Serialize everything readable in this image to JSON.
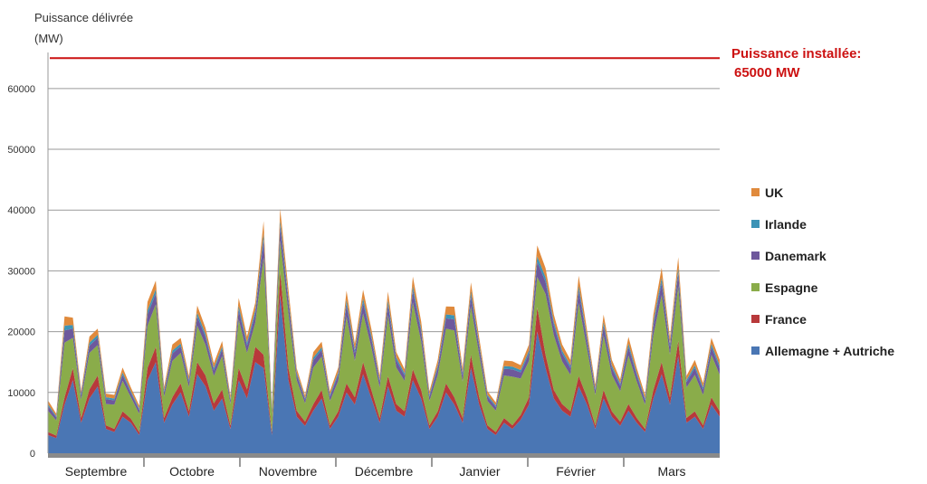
{
  "chart_data": {
    "type": "area",
    "stacked": true,
    "ylabel_line1": "Puissance délivrée",
    "ylabel_line2": "(MW)",
    "ylim": [
      0,
      65000
    ],
    "yticks": [
      0,
      10000,
      20000,
      30000,
      40000,
      50000,
      60000
    ],
    "grid": true,
    "legend_position": "right",
    "months": [
      "Septembre",
      "Octobre",
      "Novembre",
      "Décembre",
      "Janvier",
      "Février",
      "Mars"
    ],
    "reference_line": {
      "value": 65000,
      "label_line1": "Puissance installée:",
      "label_line2": "65000 MW",
      "color": "#cc1111"
    },
    "legend_order": [
      "UK",
      "Irlande",
      "Danemark",
      "Espagne",
      "France",
      "Allemagne + Autriche"
    ],
    "series": [
      {
        "name": "Allemagne + Autriche",
        "color": "#4a76b4",
        "values": [
          3000,
          2500,
          8000,
          12000,
          5000,
          9000,
          11000,
          4000,
          3500,
          6000,
          5000,
          3000,
          12000,
          15000,
          5000,
          8000,
          10000,
          6000,
          13000,
          11000,
          7000,
          9000,
          4000,
          12000,
          9000,
          15000,
          14000,
          3000,
          26000,
          12000,
          6000,
          4500,
          7000,
          9000,
          4000,
          6000,
          10000,
          8000,
          13000,
          9000,
          5000,
          11000,
          7000,
          6000,
          12000,
          9000,
          4000,
          6000,
          10000,
          8000,
          5000,
          14000,
          8000,
          4000,
          3000,
          5000,
          4000,
          5500,
          8000,
          20000,
          14000,
          9000,
          7000,
          6000,
          11000,
          8000,
          4000,
          9000,
          6000,
          4500,
          7000,
          5000,
          3500,
          9000,
          13000,
          8000,
          16000,
          5000,
          6000,
          4000,
          8000,
          6000
        ]
      },
      {
        "name": "France",
        "color": "#b8393b",
        "values": [
          500,
          400,
          1200,
          2000,
          800,
          1500,
          1800,
          600,
          500,
          900,
          700,
          500,
          2000,
          2500,
          800,
          1200,
          1500,
          900,
          2000,
          1800,
          1200,
          1500,
          600,
          2000,
          1500,
          2500,
          2200,
          500,
          4000,
          2000,
          1000,
          700,
          1100,
          1400,
          600,
          900,
          1500,
          1200,
          2000,
          1400,
          800,
          1700,
          1100,
          900,
          1800,
          1400,
          600,
          900,
          1500,
          1200,
          800,
          2200,
          1200,
          600,
          500,
          800,
          600,
          800,
          1200,
          4000,
          2200,
          1400,
          1100,
          900,
          1700,
          1200,
          600,
          1400,
          900,
          700,
          1100,
          800,
          500,
          1400,
          2000,
          1200,
          2500,
          800,
          900,
          600,
          1200,
          900
        ]
      },
      {
        "name": "Espagne",
        "color": "#8aac4a",
        "values": [
          3500,
          2500,
          9000,
          5000,
          3000,
          6000,
          5000,
          3500,
          4000,
          5000,
          3500,
          3000,
          7000,
          7000,
          3500,
          6000,
          5000,
          4000,
          6000,
          5000,
          4500,
          5500,
          3500,
          8000,
          6000,
          4000,
          16000,
          3000,
          5000,
          9000,
          5000,
          3000,
          6000,
          5500,
          4000,
          5000,
          11000,
          6000,
          8000,
          7000,
          5000,
          10000,
          6000,
          5000,
          11000,
          8000,
          4000,
          6000,
          9000,
          11000,
          6000,
          8000,
          7000,
          4000,
          3500,
          7000,
          8000,
          6000,
          6000,
          5000,
          10000,
          9000,
          7000,
          6000,
          12000,
          8000,
          5000,
          9000,
          6000,
          5000,
          8000,
          6000,
          4000,
          9000,
          11000,
          7000,
          9000,
          5000,
          6000,
          5000,
          7000,
          6000
        ]
      },
      {
        "name": "Danemark",
        "color": "#6e589c",
        "values": [
          800,
          500,
          2000,
          1500,
          700,
          1200,
          1200,
          800,
          700,
          1000,
          700,
          600,
          1800,
          1800,
          700,
          1200,
          1100,
          800,
          1500,
          1300,
          900,
          1100,
          600,
          1600,
          1200,
          1500,
          3000,
          600,
          2500,
          1800,
          900,
          600,
          1200,
          1100,
          700,
          1000,
          2000,
          1300,
          1800,
          1400,
          900,
          1800,
          1200,
          900,
          2000,
          1500,
          700,
          1100,
          1700,
          1800,
          1000,
          1800,
          1300,
          700,
          600,
          1100,
          1200,
          1000,
          1200,
          2500,
          2000,
          1600,
          1300,
          1100,
          2100,
          1400,
          800,
          1600,
          1100,
          900,
          1400,
          1000,
          700,
          1600,
          2100,
          1300,
          2200,
          900,
          1100,
          900,
          1300,
          1100
        ]
      },
      {
        "name": "Irlande",
        "color": "#3c93b6",
        "values": [
          300,
          200,
          800,
          600,
          300,
          500,
          500,
          300,
          300,
          400,
          300,
          250,
          700,
          700,
          300,
          500,
          450,
          350,
          600,
          500,
          400,
          450,
          250,
          650,
          500,
          600,
          1000,
          250,
          900,
          700,
          350,
          250,
          450,
          450,
          300,
          400,
          750,
          500,
          700,
          550,
          350,
          700,
          450,
          350,
          750,
          600,
          300,
          450,
          650,
          700,
          400,
          700,
          500,
          300,
          250,
          450,
          450,
          400,
          500,
          900,
          750,
          600,
          500,
          450,
          800,
          550,
          300,
          600,
          450,
          350,
          550,
          400,
          300,
          600,
          800,
          500,
          850,
          350,
          450,
          350,
          500,
          450
        ]
      },
      {
        "name": "UK",
        "color": "#e08a3c",
        "values": [
          600,
          400,
          1500,
          1200,
          500,
          1000,
          1000,
          600,
          600,
          800,
          600,
          500,
          1400,
          1400,
          600,
          1000,
          900,
          700,
          1200,
          1000,
          800,
          900,
          500,
          1300,
          1000,
          1200,
          2000,
          500,
          1800,
          1400,
          700,
          500,
          900,
          900,
          600,
          800,
          1500,
          1000,
          1400,
          1100,
          700,
          1400,
          900,
          700,
          1500,
          1200,
          600,
          900,
          1300,
          1400,
          800,
          1400,
          1000,
          600,
          500,
          900,
          900,
          800,
          1000,
          1800,
          1500,
          1200,
          1000,
          900,
          1600,
          1100,
          600,
          1200,
          900,
          700,
          1100,
          800,
          600,
          1200,
          1600,
          1000,
          1700,
          700,
          900,
          700,
          1000,
          900
        ]
      }
    ]
  }
}
